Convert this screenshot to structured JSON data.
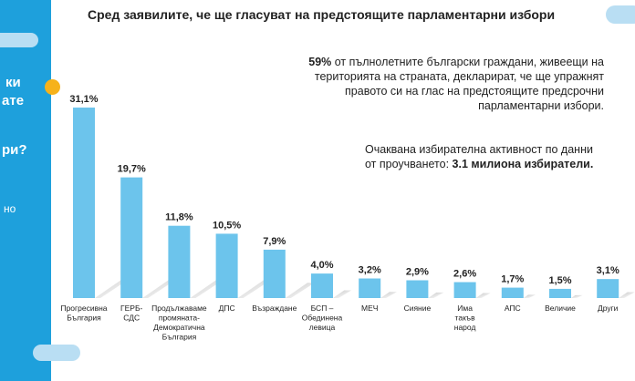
{
  "title": "Сред заявилите, че ще гласуват на предстоящите парламентарни избори",
  "sidebar": {
    "fragments": [
      "ки",
      "ате",
      "ри?",
      "но"
    ]
  },
  "note1": {
    "percent": "59%",
    "text": " от пълнолетните български граждани, живеещи на територията на страната, декларират, че ще упражнят правото си на глас на предстоящите предсрочни парламентарни избори."
  },
  "note2": {
    "text": "Очаквана избирателна активност по данни от проучването: ",
    "highlight": "3.1 милиона избиратели."
  },
  "colors": {
    "bar": "#6cc4ec",
    "sidebar": "#1ea0dc",
    "accent": "#f6b21b"
  },
  "chart_data": {
    "type": "bar",
    "title": "Сред заявилите, че ще гласуват на предстоящите парламентарни избори",
    "xlabel": "",
    "ylabel": "",
    "ylim": [
      0,
      32
    ],
    "categories": [
      [
        "Прогресивна",
        "България"
      ],
      [
        "ГЕРБ-",
        "СДС"
      ],
      [
        "Продължаваме",
        "промяната-",
        "Демократична",
        "България"
      ],
      [
        "ДПС"
      ],
      [
        "Възраждане"
      ],
      [
        "БСП –",
        "Обединена",
        "левица"
      ],
      [
        "МЕЧ"
      ],
      [
        "Сияние"
      ],
      [
        "Има",
        "такъв",
        "народ"
      ],
      [
        "АПС"
      ],
      [
        "Величие"
      ],
      [
        "Други"
      ]
    ],
    "values": [
      31.1,
      19.7,
      11.8,
      10.5,
      7.9,
      4.0,
      3.2,
      2.9,
      2.6,
      1.7,
      1.5,
      3.1
    ],
    "labels": [
      "31,1%",
      "19,7%",
      "11,8%",
      "10,5%",
      "7,9%",
      "4,0%",
      "3,2%",
      "2,9%",
      "2,6%",
      "1,7%",
      "1,5%",
      "3,1%"
    ],
    "grid": false,
    "legend": "none"
  }
}
